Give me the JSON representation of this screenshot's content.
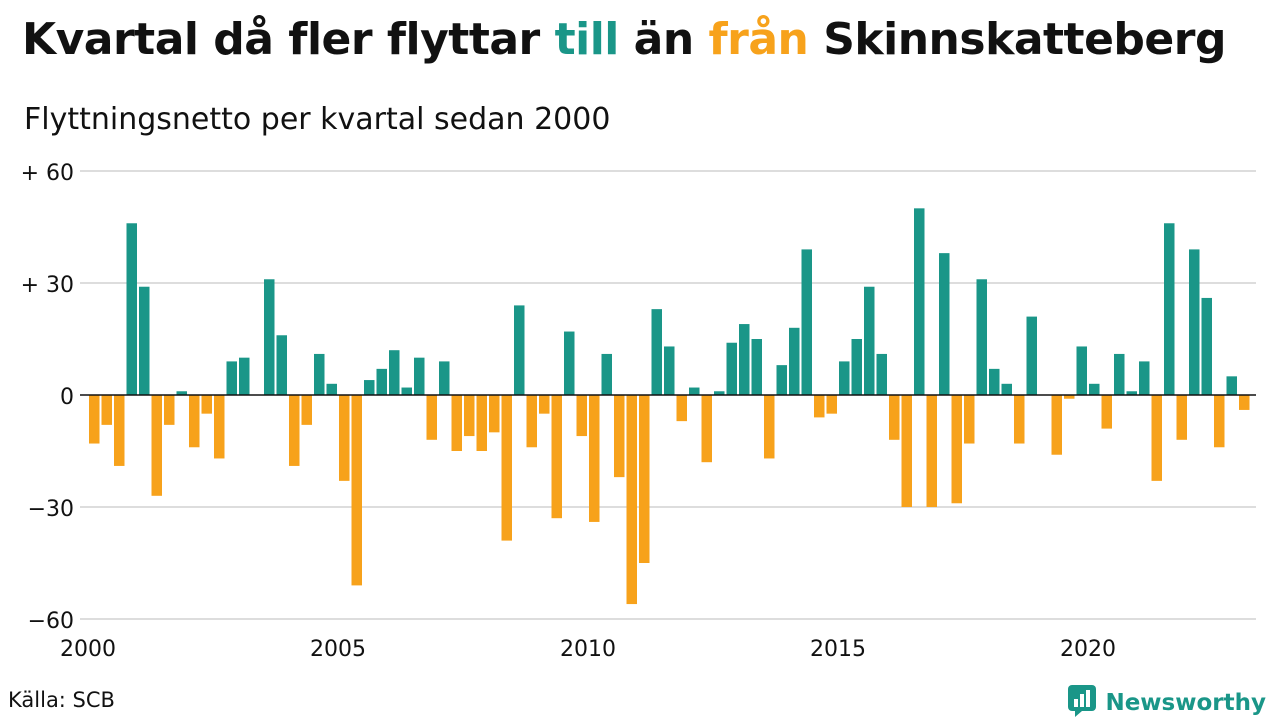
{
  "header": {
    "title_part1": "Kvartal då fler flyttar ",
    "title_till": "till",
    "title_part2": " än ",
    "title_fran": "från",
    "title_part3": " Skinnskatteberg",
    "subtitle": "Flyttningsnetto per kvartal sedan 2000"
  },
  "colors": {
    "positive": "#1a9688",
    "negative": "#f7a21b",
    "grid": "#dddddd",
    "text": "#111111"
  },
  "footer": {
    "source": "Källa: SCB",
    "brand": "Newsworthy",
    "brand_icon": "newsworthy-logo-icon"
  },
  "chart_data": {
    "type": "bar",
    "title": "Kvartal då fler flyttar till än från Skinnskatteberg",
    "subtitle": "Flyttningsnetto per kvartal sedan 2000",
    "xlabel": "",
    "ylabel": "",
    "ylim": [
      -60,
      60
    ],
    "yticks": [
      60,
      30,
      0,
      -30,
      -60
    ],
    "ytick_labels": [
      "+ 60",
      "+ 30",
      "0",
      "−30",
      "−60"
    ],
    "xticks": [
      "2000",
      "2005",
      "2010",
      "2015",
      "2020"
    ],
    "start_year": 2000,
    "frequency": "quarterly",
    "grid": true,
    "categories": [
      "2000K1",
      "2000K2",
      "2000K3",
      "2000K4",
      "2001K1",
      "2001K2",
      "2001K3",
      "2001K4",
      "2002K1",
      "2002K2",
      "2002K3",
      "2002K4",
      "2003K1",
      "2003K2",
      "2003K3",
      "2003K4",
      "2004K1",
      "2004K2",
      "2004K3",
      "2004K4",
      "2005K1",
      "2005K2",
      "2005K3",
      "2005K4",
      "2006K1",
      "2006K2",
      "2006K3",
      "2006K4",
      "2007K1",
      "2007K2",
      "2007K3",
      "2007K4",
      "2008K1",
      "2008K2",
      "2008K3",
      "2008K4",
      "2009K1",
      "2009K2",
      "2009K3",
      "2009K4",
      "2010K1",
      "2010K2",
      "2010K3",
      "2010K4",
      "2011K1",
      "2011K2",
      "2011K3",
      "2011K4",
      "2012K1",
      "2012K2",
      "2012K3",
      "2012K4",
      "2013K1",
      "2013K2",
      "2013K3",
      "2013K4",
      "2014K1",
      "2014K2",
      "2014K3",
      "2014K4",
      "2015K1",
      "2015K2",
      "2015K3",
      "2015K4",
      "2016K1",
      "2016K2",
      "2016K3",
      "2016K4",
      "2017K1",
      "2017K2",
      "2017K3",
      "2017K4",
      "2018K1",
      "2018K2",
      "2018K3",
      "2018K4",
      "2019K1",
      "2019K2",
      "2019K3",
      "2019K4",
      "2020K1",
      "2020K2",
      "2020K3",
      "2020K4",
      "2021K1",
      "2021K2",
      "2021K3",
      "2021K4",
      "2022K1",
      "2022K2",
      "2022K3",
      "2022K4",
      "2023K1",
      "2023K2"
    ],
    "values": [
      -13,
      -8,
      -19,
      46,
      29,
      -27,
      -8,
      1,
      -14,
      -5,
      -17,
      9,
      10,
      0,
      31,
      16,
      -19,
      -8,
      11,
      3,
      -23,
      -51,
      4,
      7,
      12,
      2,
      10,
      -12,
      9,
      -15,
      -11,
      -15,
      -10,
      -39,
      24,
      -14,
      -5,
      -33,
      17,
      -11,
      -34,
      11,
      -22,
      -56,
      -45,
      23,
      13,
      -7,
      2,
      -18,
      1,
      14,
      19,
      15,
      -17,
      8,
      18,
      39,
      -6,
      -5,
      9,
      15,
      29,
      11,
      -12,
      -30,
      50,
      -30,
      38,
      -29,
      -13,
      31,
      7,
      3,
      -13,
      21,
      0,
      -16,
      -1,
      13,
      3,
      -9,
      11,
      1,
      9,
      -23,
      46,
      -12,
      39,
      26,
      -14,
      5,
      -4,
      0
    ]
  }
}
